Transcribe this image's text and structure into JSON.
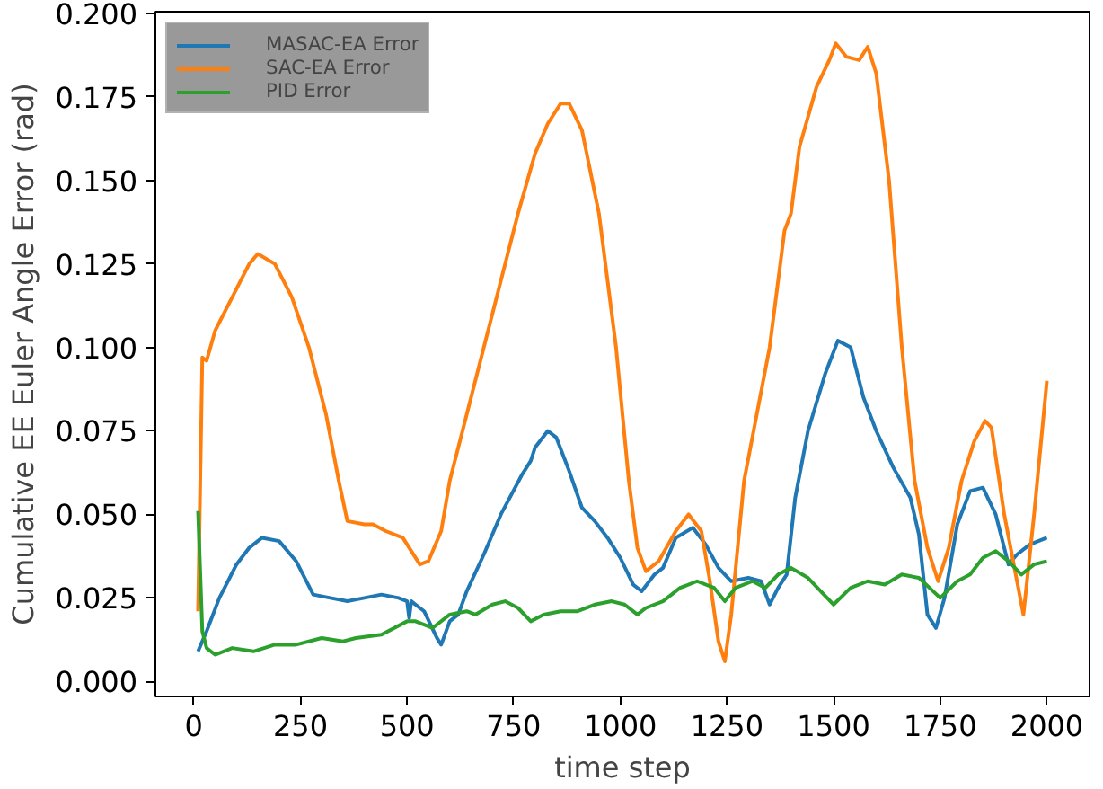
{
  "chart_data": {
    "type": "line",
    "xlabel": "time step",
    "ylabel": "Cumulative EE Euler Angle Error (rad)",
    "xlim": [
      -90,
      2100
    ],
    "ylim": [
      -0.0045,
      0.2005
    ],
    "xticks": [
      0,
      250,
      500,
      750,
      1000,
      1250,
      1500,
      1750,
      2000
    ],
    "yticks": [
      {
        "value": 0,
        "label": "0.000"
      },
      {
        "value": 0.025,
        "label": "0.025"
      },
      {
        "value": 0.05,
        "label": "0.050"
      },
      {
        "value": 0.075,
        "label": "0.075"
      },
      {
        "value": 0.1,
        "label": "0.100"
      },
      {
        "value": 0.125,
        "label": "0.125"
      },
      {
        "value": 0.15,
        "label": "0.150"
      },
      {
        "value": 0.175,
        "label": "0.175"
      },
      {
        "value": 0.2,
        "label": "0.200"
      }
    ],
    "grid": false,
    "legend": "top left",
    "marker": "none",
    "line_style": "solid",
    "series": [
      {
        "name": "MASAC-EA Error",
        "color": "#1f77b4",
        "x": [
          10,
          30,
          60,
          100,
          130,
          160,
          200,
          240,
          280,
          320,
          360,
          400,
          440,
          480,
          500,
          505,
          510,
          540,
          570,
          580,
          600,
          620,
          640,
          680,
          720,
          770,
          790,
          800,
          830,
          850,
          880,
          910,
          940,
          970,
          1000,
          1030,
          1050,
          1080,
          1100,
          1130,
          1170,
          1200,
          1230,
          1260,
          1300,
          1330,
          1350,
          1370,
          1390,
          1410,
          1440,
          1480,
          1510,
          1540,
          1570,
          1600,
          1640,
          1680,
          1700,
          1720,
          1740,
          1760,
          1790,
          1820,
          1850,
          1880,
          1910,
          1930,
          1960,
          2000
        ],
        "values": [
          0.009,
          0.015,
          0.025,
          0.035,
          0.04,
          0.043,
          0.042,
          0.036,
          0.026,
          0.025,
          0.024,
          0.025,
          0.026,
          0.025,
          0.024,
          0.019,
          0.024,
          0.021,
          0.013,
          0.011,
          0.018,
          0.02,
          0.027,
          0.038,
          0.05,
          0.062,
          0.066,
          0.07,
          0.075,
          0.073,
          0.063,
          0.052,
          0.048,
          0.043,
          0.037,
          0.029,
          0.027,
          0.032,
          0.034,
          0.043,
          0.046,
          0.041,
          0.034,
          0.03,
          0.031,
          0.03,
          0.023,
          0.028,
          0.032,
          0.055,
          0.075,
          0.092,
          0.102,
          0.1,
          0.085,
          0.075,
          0.064,
          0.055,
          0.044,
          0.02,
          0.016,
          0.025,
          0.047,
          0.057,
          0.058,
          0.05,
          0.035,
          0.038,
          0.041,
          0.043
        ]
      },
      {
        "name": "SAC-EA Error",
        "color": "#ff7f0e",
        "x": [
          10,
          20,
          30,
          50,
          90,
          130,
          150,
          190,
          230,
          270,
          310,
          340,
          360,
          400,
          420,
          450,
          490,
          530,
          550,
          580,
          600,
          640,
          680,
          720,
          760,
          800,
          830,
          860,
          880,
          910,
          950,
          990,
          1020,
          1040,
          1060,
          1090,
          1130,
          1160,
          1190,
          1210,
          1230,
          1245,
          1260,
          1290,
          1320,
          1350,
          1370,
          1385,
          1400,
          1420,
          1460,
          1490,
          1505,
          1530,
          1560,
          1580,
          1600,
          1630,
          1660,
          1690,
          1720,
          1745,
          1770,
          1800,
          1830,
          1855,
          1870,
          1900,
          1930,
          1945,
          1970,
          2000
        ],
        "values": [
          0.021,
          0.097,
          0.096,
          0.105,
          0.115,
          0.125,
          0.128,
          0.125,
          0.115,
          0.1,
          0.08,
          0.06,
          0.048,
          0.047,
          0.047,
          0.045,
          0.043,
          0.035,
          0.036,
          0.045,
          0.06,
          0.08,
          0.1,
          0.12,
          0.14,
          0.158,
          0.167,
          0.173,
          0.173,
          0.165,
          0.14,
          0.1,
          0.06,
          0.04,
          0.033,
          0.036,
          0.045,
          0.05,
          0.045,
          0.03,
          0.012,
          0.006,
          0.02,
          0.06,
          0.08,
          0.1,
          0.12,
          0.135,
          0.14,
          0.16,
          0.178,
          0.186,
          0.191,
          0.187,
          0.186,
          0.19,
          0.182,
          0.15,
          0.1,
          0.06,
          0.04,
          0.03,
          0.04,
          0.06,
          0.072,
          0.078,
          0.076,
          0.05,
          0.03,
          0.02,
          0.05,
          0.09
        ]
      },
      {
        "name": "PID Error",
        "color": "#2ca02c",
        "x": [
          10,
          20,
          30,
          50,
          90,
          140,
          190,
          240,
          300,
          350,
          380,
          440,
          500,
          520,
          560,
          600,
          640,
          660,
          700,
          730,
          760,
          790,
          820,
          860,
          900,
          940,
          980,
          1010,
          1040,
          1060,
          1100,
          1140,
          1180,
          1220,
          1245,
          1270,
          1310,
          1340,
          1370,
          1400,
          1440,
          1500,
          1540,
          1580,
          1620,
          1660,
          1700,
          1750,
          1790,
          1820,
          1850,
          1880,
          1910,
          1940,
          1970,
          2000
        ],
        "values": [
          0.051,
          0.015,
          0.01,
          0.008,
          0.01,
          0.009,
          0.011,
          0.011,
          0.013,
          0.012,
          0.013,
          0.014,
          0.018,
          0.018,
          0.016,
          0.02,
          0.021,
          0.02,
          0.023,
          0.024,
          0.022,
          0.018,
          0.02,
          0.021,
          0.021,
          0.023,
          0.024,
          0.023,
          0.02,
          0.022,
          0.024,
          0.028,
          0.03,
          0.028,
          0.024,
          0.028,
          0.03,
          0.028,
          0.032,
          0.034,
          0.031,
          0.023,
          0.028,
          0.03,
          0.029,
          0.032,
          0.031,
          0.025,
          0.03,
          0.032,
          0.037,
          0.039,
          0.036,
          0.032,
          0.035,
          0.036
        ]
      }
    ]
  }
}
